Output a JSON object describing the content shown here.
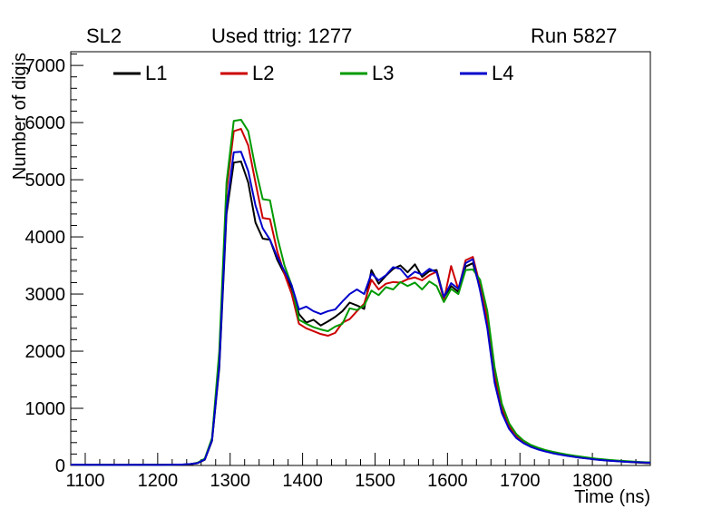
{
  "header": {
    "left": "SL2",
    "center": "Used ttrig: 1277",
    "right": "Run 5827"
  },
  "axes": {
    "x": {
      "label": "Time (ns)",
      "min": 1080,
      "max": 1880,
      "major_ticks": [
        1100,
        1200,
        1300,
        1400,
        1500,
        1600,
        1700,
        1800
      ],
      "minor_step": 20
    },
    "y": {
      "label": "Number of digis",
      "min": 0,
      "max": 7240,
      "major_ticks": [
        0,
        1000,
        2000,
        3000,
        4000,
        5000,
        6000,
        7000
      ],
      "minor_step": 200
    }
  },
  "legend": [
    {
      "label": "L1",
      "color": "#000000"
    },
    {
      "label": "L2",
      "color": "#cc0000"
    },
    {
      "label": "L3",
      "color": "#009900"
    },
    {
      "label": "L4",
      "color": "#0000cc"
    }
  ],
  "chart_data": {
    "type": "line",
    "title": "Used ttrig: 1277",
    "subtitle_left": "SL2",
    "subtitle_right": "Run 5827",
    "xlabel": "Time (ns)",
    "ylabel": "Number of digis",
    "xlim": [
      1080,
      1880
    ],
    "ylim": [
      0,
      7240
    ],
    "bin_width_ns": 10,
    "grid": false,
    "legend_position": "top",
    "x": [
      1085,
      1095,
      1105,
      1115,
      1125,
      1135,
      1145,
      1155,
      1165,
      1175,
      1185,
      1195,
      1205,
      1215,
      1225,
      1235,
      1245,
      1255,
      1265,
      1275,
      1285,
      1295,
      1305,
      1315,
      1325,
      1335,
      1345,
      1355,
      1365,
      1375,
      1385,
      1395,
      1405,
      1415,
      1425,
      1435,
      1445,
      1455,
      1465,
      1475,
      1485,
      1495,
      1505,
      1515,
      1525,
      1535,
      1545,
      1555,
      1565,
      1575,
      1585,
      1595,
      1605,
      1615,
      1625,
      1635,
      1645,
      1655,
      1665,
      1675,
      1685,
      1695,
      1705,
      1715,
      1725,
      1735,
      1745,
      1755,
      1765,
      1775,
      1785,
      1795,
      1805,
      1815,
      1825,
      1835,
      1845,
      1855,
      1865,
      1875
    ],
    "series": [
      {
        "name": "L1",
        "color": "#000000",
        "values": [
          12,
          10,
          11,
          9,
          10,
          11,
          10,
          9,
          10,
          11,
          10,
          12,
          11,
          10,
          12,
          14,
          20,
          40,
          100,
          430,
          1700,
          4400,
          5300,
          5320,
          4950,
          4250,
          3970,
          3950,
          3600,
          3350,
          3100,
          2650,
          2500,
          2550,
          2450,
          2520,
          2600,
          2700,
          2850,
          2800,
          2740,
          3420,
          3180,
          3320,
          3440,
          3500,
          3380,
          3520,
          3300,
          3400,
          3420,
          2940,
          3140,
          3040,
          3480,
          3540,
          3100,
          2450,
          1500,
          950,
          660,
          500,
          400,
          330,
          285,
          250,
          220,
          195,
          172,
          152,
          135,
          120,
          105,
          94,
          84,
          75,
          66,
          58,
          50,
          42
        ]
      },
      {
        "name": "L2",
        "color": "#cc0000",
        "values": [
          10,
          9,
          10,
          10,
          9,
          10,
          11,
          10,
          9,
          10,
          11,
          10,
          10,
          11,
          13,
          15,
          22,
          45,
          110,
          460,
          1900,
          4800,
          5850,
          5890,
          5600,
          4950,
          4330,
          4310,
          3750,
          3350,
          3000,
          2480,
          2400,
          2350,
          2300,
          2270,
          2320,
          2500,
          2560,
          2700,
          2830,
          3250,
          3080,
          3180,
          3210,
          3200,
          3260,
          3290,
          3240,
          3330,
          3390,
          2890,
          3490,
          3080,
          3590,
          3650,
          3150,
          2550,
          1620,
          1020,
          700,
          520,
          415,
          345,
          295,
          260,
          228,
          205,
          180,
          160,
          142,
          126,
          112,
          100,
          90,
          80,
          72,
          64,
          56,
          48
        ]
      },
      {
        "name": "L3",
        "color": "#009900",
        "values": [
          11,
          10,
          9,
          10,
          11,
          9,
          10,
          11,
          10,
          9,
          10,
          11,
          12,
          10,
          13,
          16,
          24,
          48,
          120,
          480,
          2000,
          4950,
          6030,
          6050,
          5850,
          5200,
          4660,
          4640,
          4000,
          3500,
          3150,
          2550,
          2480,
          2420,
          2380,
          2350,
          2430,
          2480,
          2750,
          2720,
          2800,
          3060,
          2980,
          3120,
          3080,
          3210,
          3140,
          3200,
          3080,
          3220,
          3140,
          2860,
          3090,
          3000,
          3420,
          3430,
          3250,
          2700,
          1720,
          1080,
          740,
          550,
          435,
          360,
          310,
          270,
          240,
          215,
          190,
          170,
          152,
          135,
          120,
          108,
          96,
          86,
          78,
          70,
          62,
          55
        ]
      },
      {
        "name": "L4",
        "color": "#0000cc",
        "values": [
          13,
          11,
          10,
          11,
          10,
          10,
          9,
          10,
          11,
          10,
          11,
          10,
          10,
          12,
          14,
          17,
          26,
          42,
          105,
          440,
          1750,
          4500,
          5480,
          5490,
          5150,
          4550,
          4150,
          3950,
          3650,
          3400,
          3150,
          2730,
          2780,
          2700,
          2650,
          2700,
          2730,
          2870,
          3000,
          3080,
          3000,
          3360,
          3240,
          3330,
          3470,
          3440,
          3290,
          3390,
          3340,
          3440,
          3380,
          2950,
          3190,
          3090,
          3540,
          3610,
          3060,
          2400,
          1450,
          920,
          640,
          480,
          390,
          325,
          280,
          245,
          215,
          190,
          168,
          150,
          132,
          118,
          104,
          92,
          82,
          74,
          66,
          60,
          55,
          50
        ]
      }
    ]
  }
}
